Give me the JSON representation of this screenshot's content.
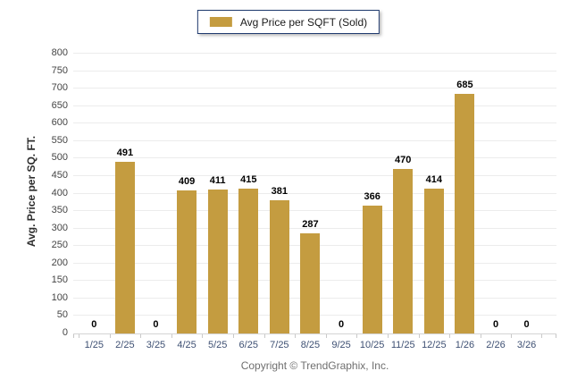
{
  "chart_data": {
    "type": "bar",
    "series_name": "Avg Price per SQFT (Sold)",
    "categories": [
      "1/25",
      "2/25",
      "3/25",
      "4/25",
      "5/25",
      "6/25",
      "7/25",
      "8/25",
      "9/25",
      "10/25",
      "11/25",
      "12/25",
      "1/26",
      "2/26",
      "3/26"
    ],
    "values": [
      0,
      491,
      0,
      409,
      411,
      415,
      381,
      287,
      0,
      366,
      470,
      414,
      685,
      0,
      0
    ],
    "title": "",
    "xlabel": "",
    "ylabel": "Avg. Price per SQ. FT.",
    "ylim": [
      0,
      800
    ],
    "ytick_step": 50,
    "grid": true,
    "legend_position": "top-center",
    "value_labels_shown": true,
    "bar_color": "#C49C40"
  },
  "footer": {
    "copyright": "Copyright © TrendGraphix, Inc."
  }
}
